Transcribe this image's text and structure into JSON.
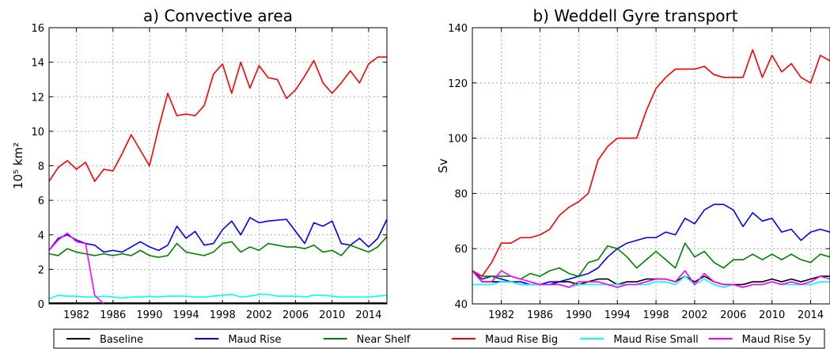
{
  "chart_data": [
    {
      "type": "line",
      "title": "a) Convective area",
      "xlabel": "",
      "ylabel": "10⁵ km²",
      "xlim": [
        1979,
        2016
      ],
      "ylim": [
        0,
        16
      ],
      "xticks": [
        1982,
        1986,
        1990,
        1994,
        1998,
        2002,
        2006,
        2010,
        2014
      ],
      "yticks": [
        0,
        2,
        4,
        6,
        8,
        10,
        12,
        14,
        16
      ],
      "grid": true,
      "x": [
        1979,
        1980,
        1981,
        1982,
        1983,
        1984,
        1985,
        1986,
        1987,
        1988,
        1989,
        1990,
        1991,
        1992,
        1993,
        1994,
        1995,
        1996,
        1997,
        1998,
        1999,
        2000,
        2001,
        2002,
        2003,
        2004,
        2005,
        2006,
        2007,
        2008,
        2009,
        2010,
        2011,
        2012,
        2013,
        2014,
        2015,
        2016
      ],
      "series": [
        {
          "name": "Baseline",
          "color": "#000000",
          "values": [
            0.05,
            0.05,
            0.05,
            0.05,
            0.05,
            0.05,
            0.05,
            0.05,
            0.05,
            0.05,
            0.05,
            0.05,
            0.05,
            0.05,
            0.05,
            0.05,
            0.05,
            0.05,
            0.05,
            0.05,
            0.05,
            0.05,
            0.05,
            0.05,
            0.05,
            0.05,
            0.05,
            0.05,
            0.05,
            0.05,
            0.05,
            0.05,
            0.05,
            0.05,
            0.05,
            0.05,
            0.05,
            0.05
          ]
        },
        {
          "name": "Maud Rise",
          "color": "#0000ff",
          "values": [
            3.1,
            3.8,
            4.0,
            3.7,
            3.5,
            3.4,
            3.0,
            3.1,
            3.0,
            3.3,
            3.6,
            3.3,
            3.1,
            3.4,
            4.5,
            3.8,
            4.2,
            3.4,
            3.5,
            4.3,
            4.8,
            4.0,
            5.0,
            4.7,
            4.8,
            4.85,
            4.9,
            4.2,
            3.5,
            4.7,
            4.5,
            4.8,
            3.5,
            3.4,
            3.8,
            3.3,
            3.8,
            4.9
          ]
        },
        {
          "name": "Near Shelf",
          "color": "#008000",
          "values": [
            2.9,
            2.8,
            3.2,
            3.0,
            2.9,
            2.8,
            2.9,
            2.8,
            2.9,
            2.8,
            3.1,
            2.8,
            2.7,
            2.8,
            3.5,
            3.0,
            2.9,
            2.8,
            3.0,
            3.5,
            3.6,
            3.0,
            3.3,
            3.1,
            3.5,
            3.4,
            3.3,
            3.3,
            3.2,
            3.4,
            3.0,
            3.1,
            2.8,
            3.4,
            3.2,
            3.0,
            3.3,
            3.9
          ]
        },
        {
          "name": "Maud Rise Big",
          "color": "#ff0000",
          "values": [
            7.1,
            7.9,
            8.3,
            7.8,
            8.2,
            7.1,
            7.8,
            7.7,
            8.7,
            9.8,
            8.9,
            8.0,
            10.2,
            12.2,
            10.9,
            11.0,
            10.9,
            11.5,
            13.3,
            13.9,
            12.2,
            14.0,
            12.5,
            13.8,
            13.1,
            13.0,
            11.9,
            12.4,
            13.2,
            14.1,
            12.8,
            12.2,
            12.8,
            13.5,
            12.8,
            13.9,
            14.3,
            14.3
          ]
        },
        {
          "name": "Maud Rise Small",
          "color": "#00ffff",
          "values": [
            0.3,
            0.5,
            0.45,
            0.45,
            0.4,
            0.4,
            0.45,
            0.4,
            0.35,
            0.4,
            0.4,
            0.45,
            0.4,
            0.45,
            0.45,
            0.45,
            0.4,
            0.4,
            0.45,
            0.5,
            0.55,
            0.4,
            0.45,
            0.55,
            0.55,
            0.45,
            0.45,
            0.45,
            0.4,
            0.5,
            0.5,
            0.45,
            0.4,
            0.4,
            0.4,
            0.4,
            0.45,
            0.5
          ]
        },
        {
          "name": "Maud Rise 5y",
          "color": "#ff00ff",
          "values": [
            3.1,
            3.7,
            4.1,
            3.6,
            3.5,
            0.5,
            0.0,
            null,
            null,
            null,
            null,
            null,
            null,
            null,
            null,
            null,
            null,
            null,
            null,
            null,
            null,
            null,
            null,
            null,
            null,
            null,
            null,
            null,
            null,
            null,
            null,
            null,
            null,
            null,
            null,
            null,
            null,
            null
          ]
        }
      ]
    },
    {
      "type": "line",
      "title": "b) Weddell Gyre transport",
      "xlabel": "",
      "ylabel": "Sv",
      "xlim": [
        1979,
        2016
      ],
      "ylim": [
        40,
        140
      ],
      "xticks": [
        1982,
        1986,
        1990,
        1994,
        1998,
        2002,
        2006,
        2010,
        2014
      ],
      "yticks": [
        40,
        60,
        80,
        100,
        120,
        140
      ],
      "grid": true,
      "x": [
        1979,
        1980,
        1981,
        1982,
        1983,
        1984,
        1985,
        1986,
        1987,
        1988,
        1989,
        1990,
        1991,
        1992,
        1993,
        1994,
        1995,
        1996,
        1997,
        1998,
        1999,
        2000,
        2001,
        2002,
        2003,
        2004,
        2005,
        2006,
        2007,
        2008,
        2009,
        2010,
        2011,
        2012,
        2013,
        2014,
        2015,
        2016
      ],
      "series": [
        {
          "name": "Baseline",
          "color": "#000000",
          "values": [
            52,
            48,
            48,
            48,
            48,
            47,
            47,
            47,
            47,
            48,
            48,
            47,
            48,
            49,
            49,
            47,
            48,
            48,
            49,
            49,
            49,
            48,
            50,
            48,
            50,
            48,
            47,
            47,
            47,
            48,
            48,
            49,
            48,
            49,
            48,
            49,
            50,
            50
          ]
        },
        {
          "name": "Maud Rise",
          "color": "#0000ff",
          "values": [
            52,
            49,
            50,
            49,
            48,
            48,
            47,
            47,
            48,
            48,
            49,
            50,
            51,
            53,
            57,
            60,
            62,
            63,
            64,
            64,
            66,
            65,
            71,
            69,
            74,
            76,
            76,
            74,
            68,
            73,
            70,
            71,
            66,
            67,
            63,
            66,
            67,
            66
          ]
        },
        {
          "name": "Near Shelf",
          "color": "#008000",
          "values": [
            52,
            50,
            50,
            50,
            50,
            49,
            51,
            50,
            52,
            53,
            51,
            50,
            55,
            56,
            61,
            60,
            57,
            53,
            56,
            59,
            56,
            53,
            62,
            57,
            59,
            55,
            53,
            56,
            56,
            58,
            56,
            58,
            56,
            58,
            56,
            55,
            58,
            57
          ]
        },
        {
          "name": "Maud Rise Big",
          "color": "#ff0000",
          "values": [
            52,
            50,
            55,
            62,
            62,
            64,
            64,
            65,
            67,
            72,
            75,
            77,
            80,
            92,
            97,
            100,
            100,
            100,
            110,
            118,
            122,
            125,
            125,
            125,
            126,
            123,
            122,
            122,
            122,
            132,
            122,
            130,
            124,
            127,
            122,
            120,
            130,
            128
          ]
        },
        {
          "name": "Maud Rise Small",
          "color": "#00ffff",
          "values": [
            47,
            47,
            47,
            48,
            48,
            47,
            47,
            47,
            47,
            47,
            46,
            47,
            47,
            47,
            47,
            47,
            47,
            47,
            47,
            48,
            48,
            47,
            50,
            47,
            49,
            47,
            46,
            47,
            46,
            47,
            47,
            48,
            47,
            47,
            47,
            47,
            48,
            48
          ]
        },
        {
          "name": "Maud Rise 5y",
          "color": "#ff00ff",
          "values": [
            52,
            48,
            48,
            52,
            50,
            49,
            48,
            47,
            47,
            47,
            46,
            48,
            48,
            48,
            47,
            46,
            47,
            47,
            48,
            49,
            49,
            48,
            52,
            47,
            51,
            48,
            47,
            47,
            46,
            47,
            47,
            48,
            47,
            48,
            47,
            48,
            50,
            49
          ]
        }
      ]
    }
  ],
  "legend": {
    "placement": "bottom",
    "entries": [
      {
        "label": "Baseline",
        "color": "#000000"
      },
      {
        "label": "Maud Rise",
        "color": "#0000ff"
      },
      {
        "label": "Near Shelf",
        "color": "#008000"
      },
      {
        "label": "Maud Rise Big",
        "color": "#ff0000"
      },
      {
        "label": "Maud Rise Small",
        "color": "#00ffff"
      },
      {
        "label": "Maud Rise 5y",
        "color": "#ff00ff"
      }
    ]
  }
}
